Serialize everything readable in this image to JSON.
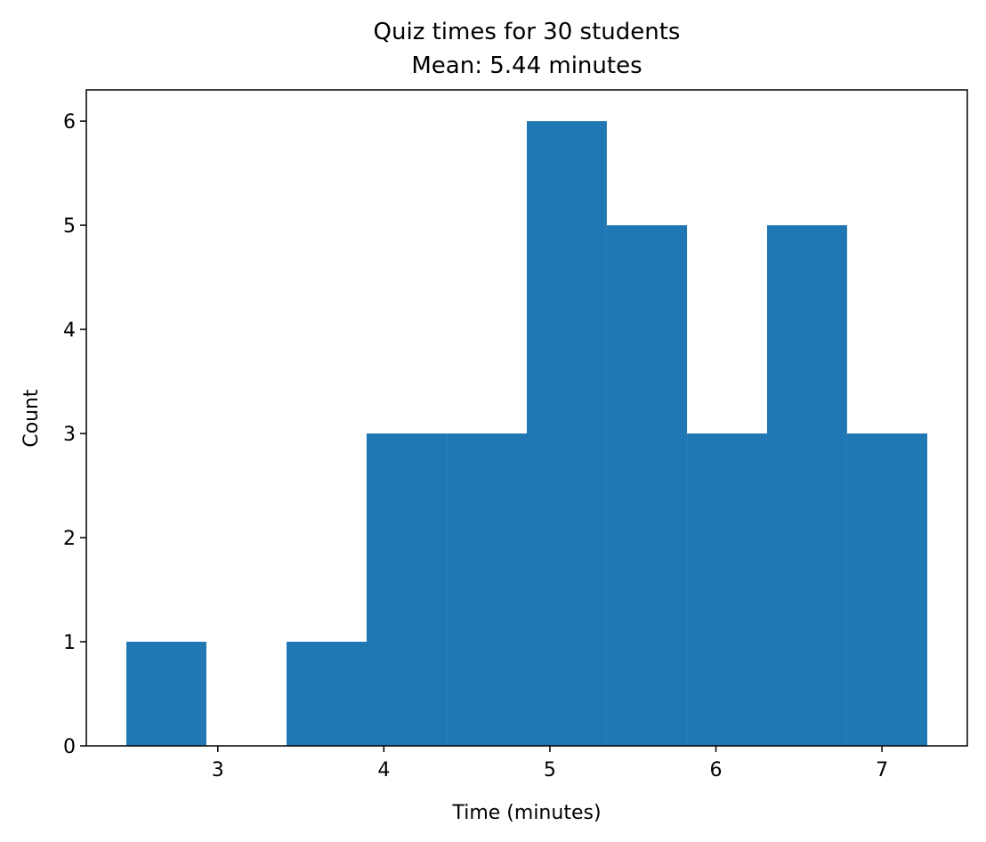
{
  "chart_data": {
    "type": "histogram",
    "title": "Quiz times for 30 students",
    "subtitle": "Mean: 5.44 minutes",
    "x_label": "Time (minutes)",
    "y_label": "Count",
    "bins": [
      2.449,
      2.931,
      3.414,
      3.896,
      4.379,
      4.861,
      5.343,
      5.826,
      6.308,
      6.79,
      7.273
    ],
    "counts": [
      1,
      0,
      1,
      3,
      3,
      6,
      5,
      3,
      5,
      3
    ],
    "color": "#1f77b4",
    "xlim": [
      2.208,
      7.514
    ],
    "xticks": [
      3,
      4,
      5,
      6,
      7
    ],
    "ylim": [
      0,
      6.3
    ],
    "yticks": [
      0,
      1,
      2,
      3,
      4,
      5,
      6
    ],
    "grid": false
  }
}
